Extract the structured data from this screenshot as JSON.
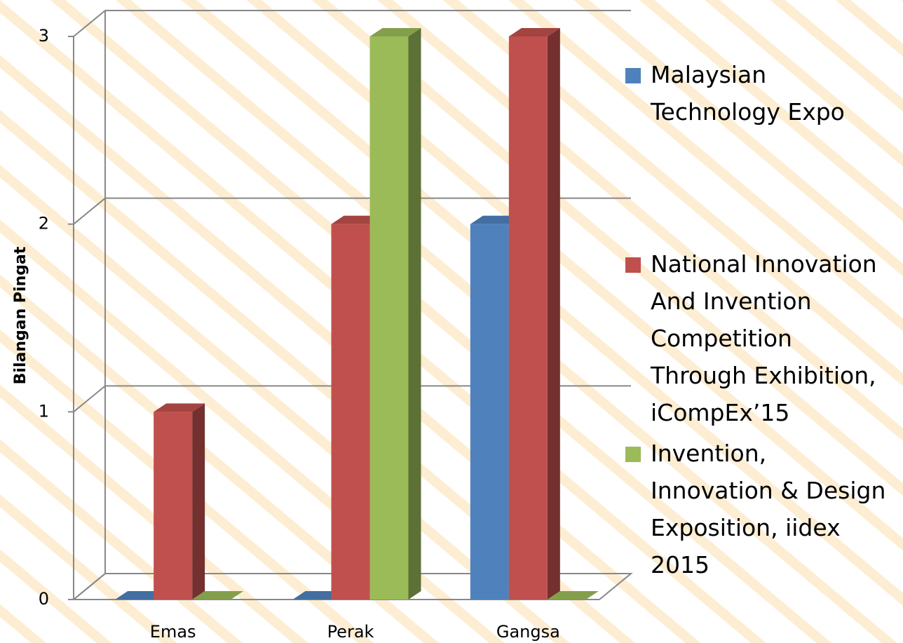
{
  "chart_data": {
    "type": "bar3d",
    "y_label": "Bilangan  Pingat",
    "categories": [
      "Emas",
      "Perak",
      "Gangsa"
    ],
    "series": [
      {
        "name": "Malaysian Technology Expo",
        "color": "#4f81bd",
        "values": [
          0,
          0,
          2
        ]
      },
      {
        "name": "National Innovation And Invention Competition Through Exhibition, iCompEx’15",
        "color": "#c0504d",
        "values": [
          1,
          2,
          3
        ]
      },
      {
        "name": "Invention, Innovation & Design Exposition, iidex 2015",
        "color": "#9bbb59",
        "values": [
          0,
          3,
          0
        ]
      }
    ],
    "ylim": [
      0,
      3
    ],
    "yticks": [
      0,
      1,
      2,
      3
    ],
    "grid": true,
    "legend": "right"
  }
}
